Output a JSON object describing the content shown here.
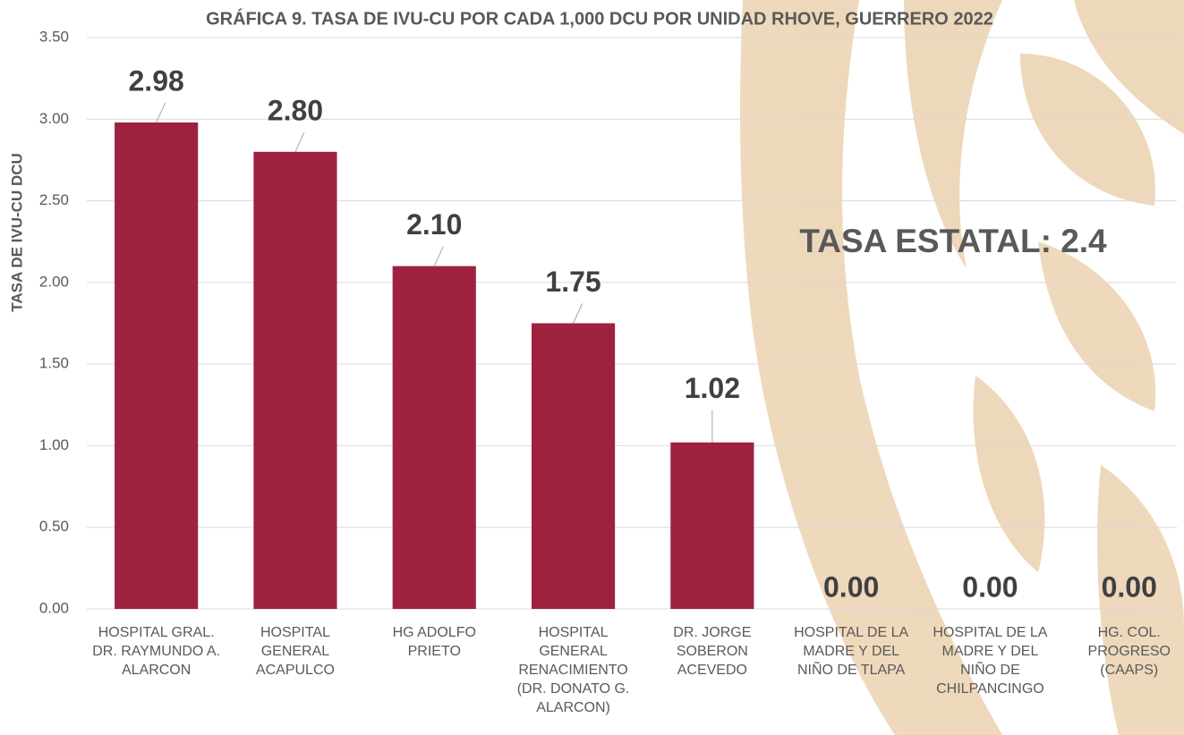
{
  "chart_data": {
    "type": "bar",
    "title": "GRÁFICA 9. TASA DE IVU-CU POR CADA 1,000 DCU POR UNIDAD RHOVE, GUERRERO 2022",
    "y_label": "TASA DE IVU-CU DCU",
    "annotations": [
      "TASA ESTATAL: 2.4"
    ],
    "categories": [
      "HOSPITAL GRAL. DR. RAYMUNDO A. ALARCON",
      "HOSPITAL GENERAL ACAPULCO",
      "HG ADOLFO PRIETO",
      "HOSPITAL GENERAL RENACIMIENTO (DR. DONATO G. ALARCON)",
      "DR. JORGE SOBERON ACEVEDO",
      "HOSPITAL DE LA MADRE Y DEL NIÑO DE TLAPA",
      "HOSPITAL DE LA MADRE Y DEL NIÑO DE CHILPANCINGO",
      "HG. COL. PROGRESO (CAAPS)"
    ],
    "values": [
      2.98,
      2.8,
      2.1,
      1.75,
      1.02,
      0,
      0,
      0
    ],
    "value_labels": [
      "2.98",
      "2.80",
      "2.10",
      "1.75",
      "1.02",
      "0.00",
      "0.00",
      "0.00"
    ],
    "color": "#9e2240",
    "ylim": [
      0,
      3.5
    ],
    "yticks": [
      {
        "value": 0,
        "label": "0.00"
      },
      {
        "value": 0.5,
        "label": "0.50"
      },
      {
        "value": 1,
        "label": "1.00"
      },
      {
        "value": 1.5,
        "label": "1.50"
      },
      {
        "value": 2,
        "label": "2.00"
      },
      {
        "value": 2.5,
        "label": "2.50"
      },
      {
        "value": 3,
        "label": "3.00"
      },
      {
        "value": 3.5,
        "label": "3.50"
      }
    ],
    "grid": true
  }
}
